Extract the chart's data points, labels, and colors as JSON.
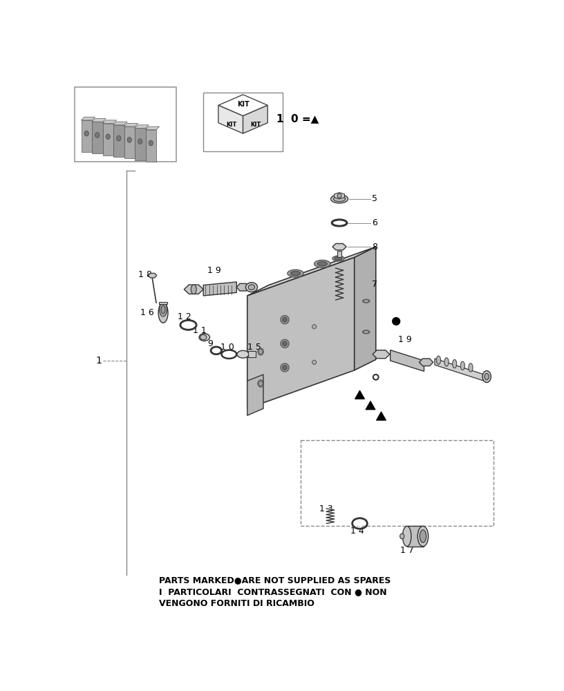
{
  "bg_color": "#ffffff",
  "line_color": "#333333",
  "gray_light": "#d8d8d8",
  "gray_mid": "#b8b8b8",
  "gray_dark": "#888888",
  "title_line1": "PARTS MARKED●ARE NOT SUPPLIED AS SPARES",
  "title_line2": "I  PARTICOLARI  CONTRASSEGNATI  CON ● NON",
  "title_line3": "VENGONO FORNITI DI RICAMBIO",
  "kit_legend": "1  0 =▲"
}
